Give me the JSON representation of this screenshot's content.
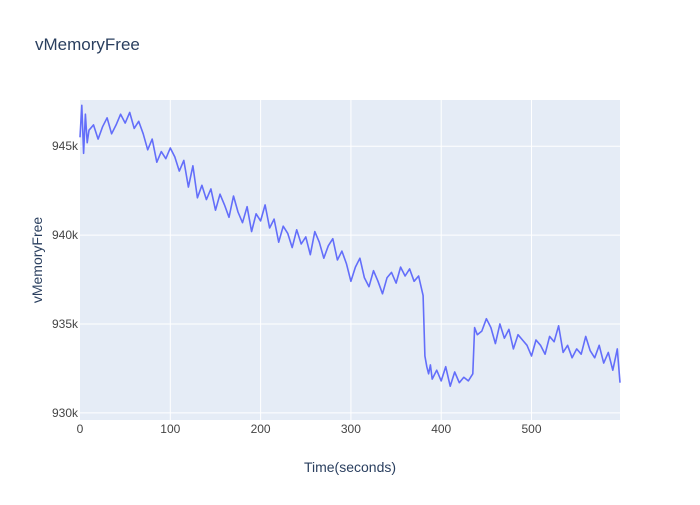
{
  "chart_data": {
    "type": "line",
    "title": "vMemoryFree",
    "xlabel": "Time(seconds)",
    "ylabel": "vMemoryFree",
    "xlim": [
      0,
      598
    ],
    "ylim": [
      929600,
      947600
    ],
    "grid": true,
    "legend": "none",
    "x_ticks": [
      0,
      100,
      200,
      300,
      400,
      500
    ],
    "x_tick_labels": [
      "0",
      "100",
      "200",
      "300",
      "400",
      "500"
    ],
    "y_ticks": [
      930000,
      935000,
      940000,
      945000
    ],
    "y_tick_labels": [
      "930k",
      "935k",
      "940k",
      "945k"
    ],
    "colors": {
      "line": "#636efa",
      "plot_bg": "#e5ecf6",
      "grid": "#ffffff",
      "text": "#2a3f5f",
      "tick_text": "#444444"
    },
    "series": [
      {
        "x": [
          0,
          2,
          4,
          6,
          8,
          10,
          15,
          20,
          25,
          30,
          35,
          40,
          45,
          50,
          55,
          60,
          65,
          70,
          75,
          80,
          85,
          90,
          95,
          100,
          105,
          110,
          115,
          120,
          125,
          130,
          135,
          140,
          145,
          150,
          155,
          160,
          165,
          170,
          175,
          180,
          185,
          190,
          195,
          200,
          205,
          210,
          215,
          220,
          225,
          230,
          235,
          240,
          245,
          250,
          255,
          260,
          265,
          270,
          275,
          280,
          285,
          290,
          295,
          300,
          305,
          310,
          315,
          320,
          325,
          330,
          335,
          340,
          345,
          350,
          355,
          360,
          365,
          370,
          375,
          380,
          382,
          384,
          386,
          388,
          390,
          395,
          400,
          405,
          410,
          415,
          420,
          425,
          430,
          435,
          437,
          440,
          445,
          450,
          455,
          460,
          465,
          470,
          475,
          480,
          485,
          490,
          495,
          500,
          505,
          510,
          515,
          520,
          525,
          530,
          535,
          540,
          545,
          550,
          555,
          560,
          565,
          570,
          575,
          580,
          585,
          590,
          595,
          598
        ],
        "values": [
          945500,
          947300,
          944600,
          946800,
          945200,
          945900,
          946200,
          945400,
          946100,
          946600,
          945700,
          946200,
          946800,
          946300,
          946900,
          946000,
          946400,
          945700,
          944800,
          945400,
          944100,
          944700,
          944300,
          944900,
          944400,
          943600,
          944200,
          942700,
          943900,
          942100,
          942800,
          942000,
          942600,
          941400,
          942300,
          941700,
          941000,
          942200,
          941300,
          940700,
          941600,
          940200,
          941200,
          940800,
          941700,
          940400,
          940900,
          939600,
          940500,
          940100,
          939300,
          940300,
          939500,
          939900,
          938900,
          940200,
          939600,
          938700,
          939400,
          939800,
          938600,
          939100,
          938400,
          937400,
          938200,
          938700,
          937600,
          937100,
          938000,
          937400,
          936700,
          937600,
          937900,
          937300,
          938200,
          937700,
          938100,
          937400,
          937700,
          936600,
          933200,
          932600,
          932200,
          932700,
          931900,
          932400,
          931800,
          932600,
          931500,
          932300,
          931700,
          932000,
          931800,
          932200,
          934800,
          934400,
          934600,
          935300,
          934800,
          933900,
          935000,
          934200,
          934700,
          933600,
          934400,
          934100,
          933800,
          933200,
          934100,
          933800,
          933300,
          934300,
          934000,
          934900,
          933400,
          933800,
          933100,
          933600,
          933300,
          934300,
          933500,
          933100,
          933800,
          932800,
          933400,
          932400,
          933600,
          931700
        ]
      }
    ]
  }
}
